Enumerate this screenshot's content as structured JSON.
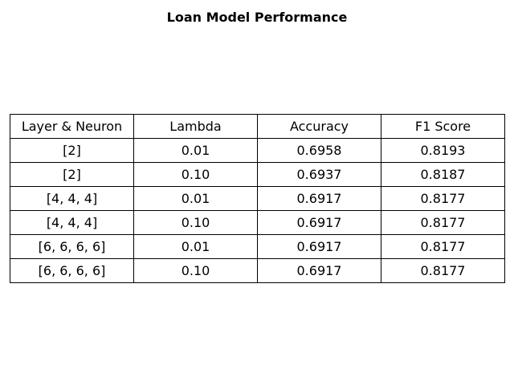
{
  "title": "Loan Model Performance",
  "chart_data": {
    "type": "table",
    "title": "Loan Model Performance",
    "columns": [
      "Layer & Neuron",
      "Lambda",
      "Accuracy",
      "F1 Score"
    ],
    "rows": [
      [
        "[2]",
        "0.01",
        "0.6958",
        "0.8193"
      ],
      [
        "[2]",
        "0.10",
        "0.6937",
        "0.8187"
      ],
      [
        "[4, 4, 4]",
        "0.01",
        "0.6917",
        "0.8177"
      ],
      [
        "[4, 4, 4]",
        "0.10",
        "0.6917",
        "0.8177"
      ],
      [
        "[6, 6, 6, 6]",
        "0.01",
        "0.6917",
        "0.8177"
      ],
      [
        "[6, 6, 6, 6]",
        "0.10",
        "0.6917",
        "0.8177"
      ]
    ]
  }
}
